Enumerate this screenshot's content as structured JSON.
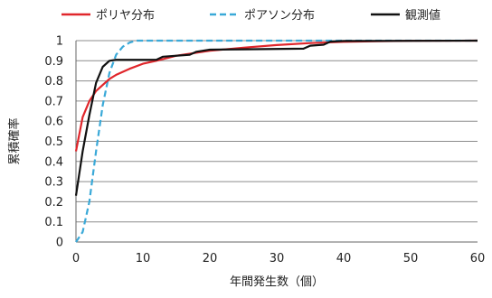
{
  "chart_data": {
    "type": "line",
    "xlabel": "年間発生数（個）",
    "ylabel": "累積確率",
    "xlim": [
      0,
      60
    ],
    "ylim": [
      0,
      1
    ],
    "x_ticks": [
      "0",
      "10",
      "20",
      "30",
      "40",
      "50",
      "60"
    ],
    "y_ticks": [
      "0",
      "0.1",
      "0.2",
      "0.3",
      "0.4",
      "0.5",
      "0.6",
      "0.7",
      "0.8",
      "0.9",
      "1"
    ],
    "grid": "horizontal",
    "legend_position": "top",
    "series": [
      {
        "name": "ポリヤ分布",
        "color": "#e0262b",
        "style": "solid",
        "points": [
          [
            0,
            0.45
          ],
          [
            1,
            0.62
          ],
          [
            2,
            0.7
          ],
          [
            3,
            0.75
          ],
          [
            4,
            0.78
          ],
          [
            5,
            0.81
          ],
          [
            6,
            0.83
          ],
          [
            8,
            0.86
          ],
          [
            10,
            0.885
          ],
          [
            12,
            0.9
          ],
          [
            15,
            0.925
          ],
          [
            20,
            0.95
          ],
          [
            25,
            0.965
          ],
          [
            30,
            0.978
          ],
          [
            35,
            0.988
          ],
          [
            40,
            0.994
          ],
          [
            45,
            0.997
          ],
          [
            50,
            0.999
          ],
          [
            60,
            1.0
          ]
        ]
      },
      {
        "name": "ポアソン分布",
        "color": "#3aa9d8",
        "style": "dashed",
        "points": [
          [
            0,
            0.0
          ],
          [
            1,
            0.05
          ],
          [
            2,
            0.2
          ],
          [
            3,
            0.45
          ],
          [
            4,
            0.68
          ],
          [
            5,
            0.84
          ],
          [
            6,
            0.93
          ],
          [
            7,
            0.97
          ],
          [
            8,
            0.99
          ],
          [
            9,
            1.0
          ],
          [
            60,
            1.0
          ]
        ]
      },
      {
        "name": "観測値",
        "color": "#111111",
        "style": "solid",
        "points": [
          [
            0,
            0.23
          ],
          [
            1,
            0.45
          ],
          [
            2,
            0.63
          ],
          [
            3,
            0.79
          ],
          [
            4,
            0.87
          ],
          [
            5,
            0.9
          ],
          [
            6,
            0.905
          ],
          [
            12,
            0.905
          ],
          [
            13,
            0.92
          ],
          [
            17,
            0.93
          ],
          [
            18,
            0.945
          ],
          [
            20,
            0.955
          ],
          [
            25,
            0.957
          ],
          [
            34,
            0.96
          ],
          [
            35,
            0.975
          ],
          [
            37,
            0.98
          ],
          [
            38,
            0.995
          ],
          [
            40,
            0.998
          ],
          [
            60,
            1.0
          ]
        ]
      }
    ]
  }
}
